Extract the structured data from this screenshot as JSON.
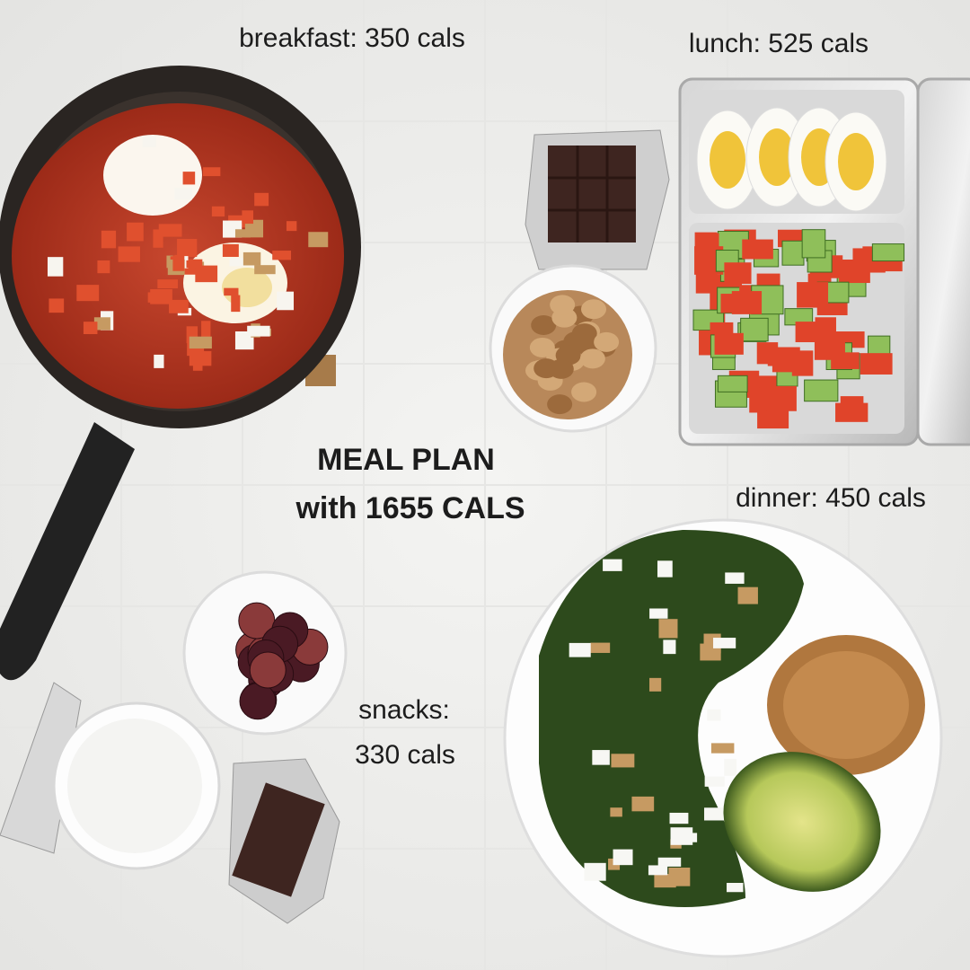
{
  "labels": {
    "breakfast": "breakfast: 350 cals",
    "lunch": "lunch: 525 cals",
    "dinner": "dinner: 450 cals",
    "snacks_line1": "snacks:",
    "snacks_line2": "330 cals"
  },
  "title": {
    "line1": "MEAL PLAN",
    "line2": "with 1655 CALS"
  }
}
